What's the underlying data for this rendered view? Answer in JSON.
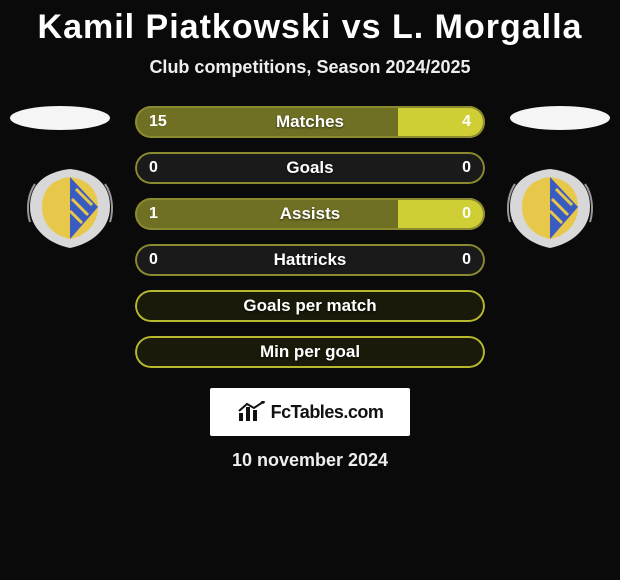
{
  "title": "Kamil Piatkowski vs L. Morgalla",
  "subtitle": "Club competitions, Season 2024/2025",
  "date": "10 november 2024",
  "logo_text": "FcTables.com",
  "colors": {
    "p1_fill": "#707024",
    "p2_fill": "#cfcf35",
    "border_dim": "#8a8a30",
    "border_bright": "#b8b830",
    "bg": "#0a0a0a"
  },
  "crest": {
    "shield_fill": "#3a5bbf",
    "shield_stripe": "#e8c84a",
    "wreath": "#d8d8d8"
  },
  "bars": [
    {
      "label": "Matches",
      "left_val": "15",
      "right_val": "4",
      "left_pct": 75,
      "right_pct": 25,
      "show_vals": true,
      "filled": true
    },
    {
      "label": "Goals",
      "left_val": "0",
      "right_val": "0",
      "left_pct": 0,
      "right_pct": 0,
      "show_vals": true,
      "filled": false
    },
    {
      "label": "Assists",
      "left_val": "1",
      "right_val": "0",
      "left_pct": 75,
      "right_pct": 25,
      "show_vals": true,
      "filled": true
    },
    {
      "label": "Hattricks",
      "left_val": "0",
      "right_val": "0",
      "left_pct": 0,
      "right_pct": 0,
      "show_vals": true,
      "filled": false
    },
    {
      "label": "Goals per match",
      "left_val": "",
      "right_val": "",
      "left_pct": 0,
      "right_pct": 0,
      "show_vals": false,
      "filled": false,
      "solid_border": true
    },
    {
      "label": "Min per goal",
      "left_val": "",
      "right_val": "",
      "left_pct": 0,
      "right_pct": 0,
      "show_vals": false,
      "filled": false,
      "solid_border": true
    }
  ]
}
